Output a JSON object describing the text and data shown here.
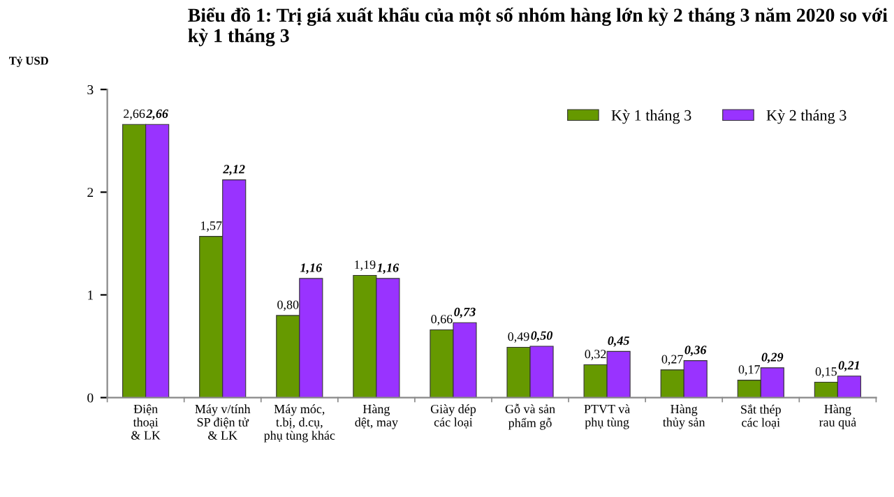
{
  "chart_data": {
    "type": "bar",
    "title": "Biểu đồ 1: Trị giá xuất khẩu của một số nhóm hàng lớn kỳ 2 tháng 3 năm 2020 so với kỳ 1 tháng 3",
    "ylabel": "Tỷ USD",
    "categories": [
      "Điện\nthoại\n& LK",
      "Máy v/tính\nSP điện tử\n& LK",
      "Máy móc,\nt.bị, d.cụ,\nphụ tùng khác",
      "Hàng\ndệt, may",
      "Giày dép\ncác loại",
      "Gỗ và sản\nphẩm gỗ",
      "PTVT và\nphụ tùng",
      "Hàng\nthủy sản",
      "Sắt thép\ncác loại",
      "Hàng\nrau quả"
    ],
    "series": [
      {
        "name": "Kỳ 1 tháng 3",
        "color": "#669900",
        "values": [
          2.66,
          1.57,
          0.8,
          1.19,
          0.66,
          0.49,
          0.32,
          0.27,
          0.17,
          0.15
        ],
        "value_labels": [
          "2,66",
          "1,57",
          "0,80",
          "1,19",
          "0,66",
          "0,49",
          "0,32",
          "0,27",
          "0,17",
          "0,15"
        ]
      },
      {
        "name": "Kỳ 2 tháng 3",
        "color": "#9933ff",
        "values": [
          2.66,
          2.12,
          1.16,
          1.16,
          0.73,
          0.5,
          0.45,
          0.36,
          0.29,
          0.21
        ],
        "value_labels": [
          "2,66",
          "2,12",
          "1,16",
          "1,16",
          "0,73",
          "0,50",
          "0,45",
          "0,36",
          "0,29",
          "0,21"
        ]
      }
    ],
    "ylim": [
      0,
      3
    ],
    "yticks": [
      0,
      1,
      2,
      3
    ],
    "grid": false,
    "legend": "top right"
  }
}
